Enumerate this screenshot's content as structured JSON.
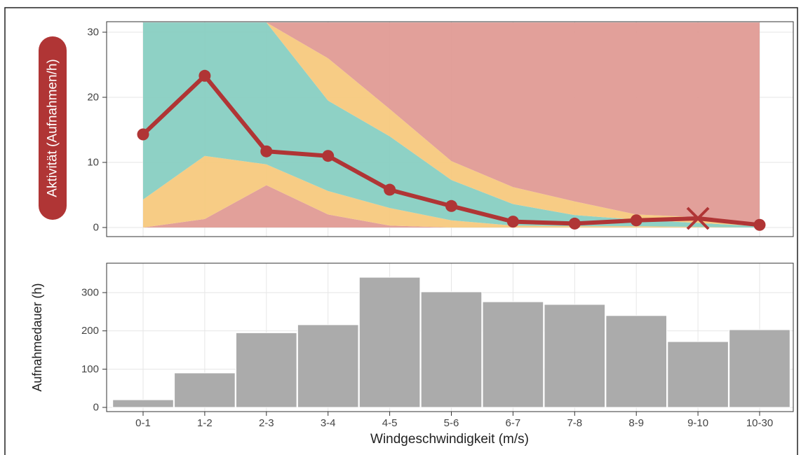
{
  "chart_data": [
    {
      "type": "area",
      "categories": [
        "0-1",
        "1-2",
        "2-3",
        "3-4",
        "4-5",
        "5-6",
        "6-7",
        "7-8",
        "8-9",
        "9-10",
        "10-30"
      ],
      "ylabel": "Aktivität (Aufnahmen/h)",
      "ylim": [
        0,
        31.5
      ],
      "yticks": [
        0,
        10,
        20,
        30
      ],
      "grid": true,
      "bands": [
        {
          "color": "#e09b95",
          "lower": [
            0,
            0,
            0,
            0,
            0,
            0,
            0,
            0,
            0,
            0,
            0
          ],
          "upper": [
            0,
            1.3,
            6.5,
            2.0,
            0.3,
            0,
            0,
            0,
            0,
            0,
            0
          ]
        },
        {
          "color": "#f7c97e",
          "lower": [
            0,
            1.3,
            6.5,
            2.0,
            0.3,
            0,
            0,
            0,
            0,
            0,
            0
          ],
          "upper": [
            4.3,
            11.0,
            9.7,
            5.6,
            3.0,
            1.1,
            0.3,
            0.2,
            0.2,
            0.1,
            0
          ]
        },
        {
          "color": "#88cfc2",
          "lower": [
            4.3,
            11.0,
            9.7,
            5.6,
            3.0,
            1.1,
            0.3,
            0.2,
            0.2,
            0.1,
            0
          ],
          "upper": [
            31.5,
            31.5,
            31.5,
            19.5,
            14.0,
            7.3,
            3.6,
            1.9,
            1.2,
            0.7,
            0.2
          ]
        },
        {
          "color": "#f7c97e",
          "lower": [
            31.5,
            31.5,
            31.5,
            19.5,
            14.0,
            7.3,
            3.6,
            1.9,
            1.2,
            0.7,
            0.2
          ],
          "upper": [
            31.5,
            31.5,
            31.5,
            26.0,
            18.2,
            10.2,
            6.2,
            4.0,
            2.0,
            1.6,
            0.3
          ]
        },
        {
          "color": "#e09b95",
          "lower": [
            31.5,
            31.5,
            31.5,
            26.0,
            18.2,
            10.2,
            6.2,
            4.0,
            2.0,
            1.6,
            0.3
          ],
          "upper": [
            31.5,
            31.5,
            31.5,
            31.5,
            31.5,
            31.5,
            31.5,
            31.5,
            31.5,
            31.5,
            31.5
          ]
        }
      ],
      "line": {
        "color": "#b03535",
        "values": [
          14.3,
          23.3,
          11.7,
          11.0,
          5.8,
          3.3,
          0.9,
          0.6,
          1.1,
          1.4,
          0.4
        ],
        "markers": [
          "dot",
          "dot",
          "dot",
          "dot",
          "dot",
          "dot",
          "dot",
          "dot",
          "dot",
          "cross",
          "dot"
        ]
      }
    },
    {
      "type": "bar",
      "categories": [
        "0-1",
        "1-2",
        "2-3",
        "3-4",
        "4-5",
        "5-6",
        "6-7",
        "7-8",
        "8-9",
        "9-10",
        "10-30"
      ],
      "values": [
        20,
        90,
        195,
        216,
        340,
        302,
        276,
        269,
        240,
        172,
        203
      ],
      "ylabel": "Aufnahmedauer (h)",
      "xlabel": "Windgeschwindigkeit (m/s)",
      "ylim": [
        0,
        375
      ],
      "yticks": [
        0,
        100,
        200,
        300
      ],
      "bar_color": "#ababab",
      "grid": true
    }
  ]
}
